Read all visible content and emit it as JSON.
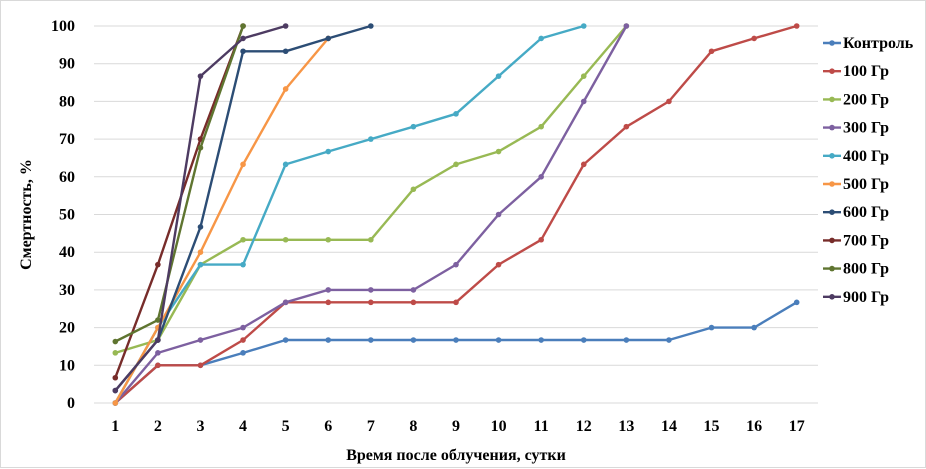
{
  "chart_data": {
    "type": "line",
    "xlabel": "Время после облучения, сутки",
    "ylabel": "Смертность, %",
    "x": [
      1,
      2,
      3,
      4,
      5,
      6,
      7,
      8,
      9,
      10,
      11,
      12,
      13,
      14,
      15,
      16,
      17
    ],
    "ylim": [
      0,
      100
    ],
    "yticks": [
      0,
      10,
      20,
      30,
      40,
      50,
      60,
      70,
      80,
      90,
      100
    ],
    "grid": "horizontal",
    "legend": "right",
    "series": [
      {
        "name": "Контроль",
        "color": "#4a7ebb",
        "x": [
          1,
          2,
          3,
          4,
          5,
          6,
          7,
          8,
          9,
          10,
          11,
          12,
          13,
          14,
          15,
          16,
          17
        ],
        "values": [
          0,
          10,
          10,
          13.3,
          16.7,
          16.7,
          16.7,
          16.7,
          16.7,
          16.7,
          16.7,
          16.7,
          16.7,
          16.7,
          20,
          20,
          26.7
        ]
      },
      {
        "name": "100 Гр",
        "color": "#be4b48",
        "x": [
          1,
          2,
          3,
          4,
          5,
          6,
          7,
          8,
          9,
          10,
          11,
          12,
          13,
          14,
          15,
          16,
          17
        ],
        "values": [
          0,
          10,
          10,
          16.7,
          26.7,
          26.7,
          26.7,
          26.7,
          26.7,
          36.7,
          43.3,
          63.3,
          73.3,
          80,
          93.3,
          96.7,
          100
        ]
      },
      {
        "name": "200 Гр",
        "color": "#98b954",
        "x": [
          1,
          2,
          3,
          4,
          5,
          6,
          7,
          8,
          9,
          10,
          11,
          12,
          13
        ],
        "values": [
          13.3,
          16.7,
          36.7,
          43.3,
          43.3,
          43.3,
          43.3,
          56.7,
          63.3,
          66.7,
          73.3,
          86.7,
          100
        ]
      },
      {
        "name": "300 Гр",
        "color": "#7d60a0",
        "x": [
          1,
          2,
          3,
          4,
          5,
          6,
          7,
          8,
          9,
          10,
          11,
          12,
          13
        ],
        "values": [
          0,
          13.3,
          16.7,
          20,
          26.7,
          30,
          30,
          30,
          36.7,
          50,
          60,
          80,
          100
        ]
      },
      {
        "name": "400 Гр",
        "color": "#46aac5",
        "x": [
          1,
          2,
          3,
          4,
          5,
          6,
          7,
          8,
          9,
          10,
          11,
          12
        ],
        "values": [
          0,
          20,
          36.7,
          36.7,
          63.3,
          66.7,
          70,
          73.3,
          76.7,
          86.7,
          96.7,
          100
        ]
      },
      {
        "name": "500 Гр",
        "color": "#f79646",
        "x": [
          1,
          2,
          3,
          4,
          5,
          6
        ],
        "values": [
          0,
          20,
          40,
          63.3,
          83.3,
          96.7
        ]
      },
      {
        "name": "600 Гр",
        "color": "#2c4d75",
        "x": [
          1,
          2,
          3,
          4,
          5,
          6,
          7
        ],
        "values": [
          3.3,
          16.7,
          46.7,
          93.3,
          93.3,
          96.7,
          100
        ]
      },
      {
        "name": "700 Гр",
        "color": "#772c2a",
        "x": [
          1,
          2,
          3,
          4
        ],
        "values": [
          6.7,
          36.7,
          70,
          100
        ]
      },
      {
        "name": "800 Гр",
        "color": "#5f7530",
        "x": [
          1,
          2,
          3,
          4
        ],
        "values": [
          16.3,
          22,
          67.7,
          100
        ]
      },
      {
        "name": "900 Гр",
        "color": "#4d3b62",
        "x": [
          1,
          2,
          3,
          4,
          5
        ],
        "values": [
          3.3,
          16.7,
          86.7,
          96.7,
          100
        ]
      }
    ]
  }
}
